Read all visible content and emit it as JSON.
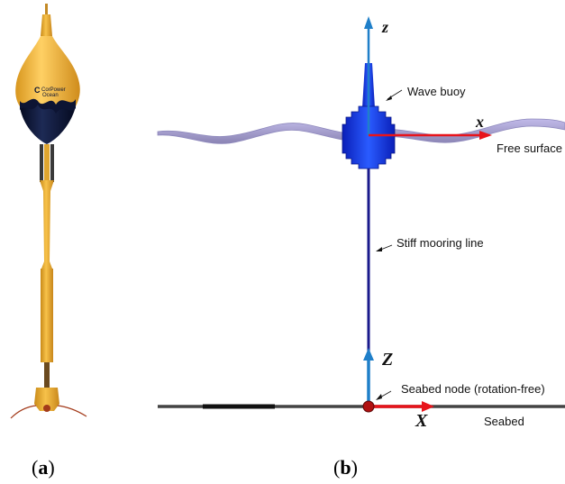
{
  "panel_a": {
    "caption_open": "(",
    "caption_letter": "a",
    "caption_close": ")",
    "logo_text_line1": "CorPower",
    "logo_text_line2": "Ocean"
  },
  "panel_b": {
    "caption_open": "(",
    "caption_letter": "b",
    "caption_close": ")",
    "axis_z_local": "z",
    "axis_x_local": "x",
    "axis_Z_global": "Z",
    "axis_X_global": "X",
    "label_wave_buoy": "Wave buoy",
    "label_free_surface": "Free surface",
    "label_mooring": "Stiff mooring line",
    "label_seabed_node": "Seabed node (rotation-free)",
    "label_seabed": "Seabed"
  },
  "colors": {
    "buoy_yellow": "#f2b331",
    "buoy_navy": "#0d1433",
    "model_blue": "#0a2fe0",
    "axis_blue": "#1f7fc9",
    "axis_red": "#e8141b",
    "mooring_navy": "#1a1a8c",
    "seabed_gray": "#444444",
    "surface_purple": "#7b72b8"
  }
}
